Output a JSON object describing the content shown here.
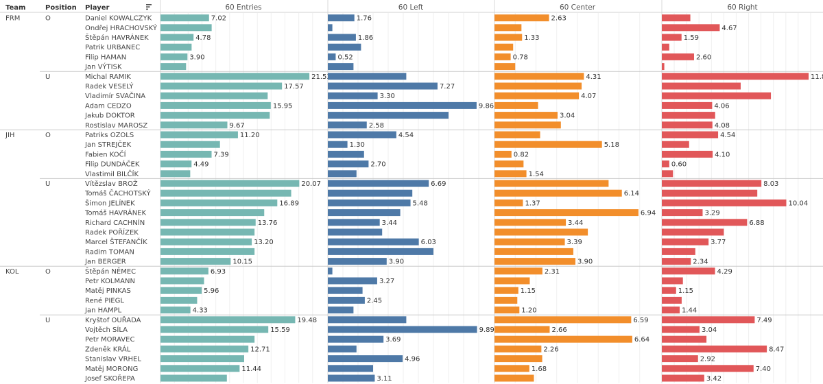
{
  "headers": {
    "team": "Team",
    "position": "Position",
    "player": "Player",
    "sort_icon": "sort-descending-icon"
  },
  "chart_data": {
    "type": "bar",
    "columns": [
      {
        "name": "60 Entries",
        "color": "#76B7B2"
      },
      {
        "name": "60 Left",
        "color": "#4E79A7"
      },
      {
        "name": "60 Center",
        "color": "#F28E2B"
      },
      {
        "name": "60 Right",
        "color": "#E15759"
      }
    ],
    "axis_ranges": [
      [
        0,
        24
      ],
      [
        0,
        11
      ],
      [
        0,
        8
      ],
      [
        0,
        13
      ]
    ],
    "gridlines": true,
    "rows": [
      {
        "team": "FRM",
        "position": "O",
        "player": "Daniel KOWALCZYK",
        "values": [
          7.02,
          1.76,
          2.63,
          2.3
        ],
        "labels": [
          "7.02",
          "1.76",
          "2.63",
          ""
        ]
      },
      {
        "team": "",
        "position": "",
        "player": "Ondřej HRACHOVSKÝ",
        "values": [
          7.4,
          0.3,
          1.3,
          4.67
        ],
        "labels": [
          "",
          "",
          "",
          "4.67"
        ]
      },
      {
        "team": "",
        "position": "",
        "player": "Štěpán HAVRÁNEK",
        "values": [
          4.78,
          1.86,
          1.33,
          1.59
        ],
        "labels": [
          "4.78",
          "1.86",
          "1.33",
          "1.59"
        ]
      },
      {
        "team": "",
        "position": "",
        "player": "Patrik URBANEC",
        "values": [
          4.5,
          2.2,
          0.9,
          0.6
        ],
        "labels": [
          "",
          "",
          "",
          ""
        ]
      },
      {
        "team": "",
        "position": "",
        "player": "Filip HAMAN",
        "values": [
          3.9,
          0.52,
          0.78,
          2.6
        ],
        "labels": [
          "3.90",
          "0.52",
          "0.78",
          "2.60"
        ]
      },
      {
        "team": "",
        "position": "",
        "player": "Jan VÝTISK",
        "values": [
          3.7,
          1.7,
          1.0,
          0.2
        ],
        "labels": [
          "",
          "",
          "",
          ""
        ]
      },
      {
        "team": "",
        "position": "U",
        "player": "Michal RAMIK",
        "values": [
          21.53,
          5.2,
          4.31,
          11.84
        ],
        "labels": [
          "21.53",
          "",
          "4.31",
          "11.84"
        ]
      },
      {
        "team": "",
        "position": "",
        "player": "Radek VESELÝ",
        "values": [
          17.57,
          7.27,
          4.2,
          6.36
        ],
        "labels": [
          "17.57",
          "7.27",
          "",
          ""
        ]
      },
      {
        "team": "",
        "position": "",
        "player": "Vladimír SVAČINA",
        "values": [
          15.5,
          3.3,
          4.07,
          8.8
        ],
        "labels": [
          "",
          "3.30",
          "4.07",
          ""
        ]
      },
      {
        "team": "",
        "position": "",
        "player": "Adam CEDZO",
        "values": [
          15.95,
          9.86,
          2.1,
          4.06
        ],
        "labels": [
          "15.95",
          "9.86",
          "",
          "4.06"
        ]
      },
      {
        "team": "",
        "position": "",
        "player": "Jakub DOKTOR",
        "values": [
          15.8,
          8.0,
          3.04,
          4.3
        ],
        "labels": [
          "",
          "",
          "3.04",
          ""
        ]
      },
      {
        "team": "",
        "position": "",
        "player": "Rostislav MAROSZ",
        "values": [
          9.67,
          2.58,
          3.2,
          4.08
        ],
        "labels": [
          "9.67",
          "2.58",
          "",
          "4.08"
        ]
      },
      {
        "team": "JIH",
        "position": "O",
        "player": "Patriks OZOLS",
        "values": [
          11.2,
          4.54,
          2.2,
          4.54
        ],
        "labels": [
          "11.20",
          "4.54",
          "",
          "4.54"
        ]
      },
      {
        "team": "",
        "position": "",
        "player": "Jan STREJČEK",
        "values": [
          8.6,
          1.3,
          5.18,
          2.2
        ],
        "labels": [
          "",
          "1.30",
          "5.18",
          ""
        ]
      },
      {
        "team": "",
        "position": "",
        "player": "Fabien KOČÍ",
        "values": [
          7.39,
          2.4,
          0.82,
          4.1
        ],
        "labels": [
          "7.39",
          "",
          "0.82",
          "4.10"
        ]
      },
      {
        "team": "",
        "position": "",
        "player": "Filip DUNDÁČEK",
        "values": [
          4.49,
          2.7,
          1.4,
          0.6
        ],
        "labels": [
          "4.49",
          "2.70",
          "",
          "0.60"
        ]
      },
      {
        "team": "",
        "position": "",
        "player": "Vlastimil BILČÍK",
        "values": [
          4.3,
          1.9,
          1.54,
          0.9
        ],
        "labels": [
          "",
          "",
          "1.54",
          ""
        ]
      },
      {
        "team": "",
        "position": "U",
        "player": "Vítězslav BROŽ",
        "values": [
          20.07,
          6.69,
          5.5,
          8.03
        ],
        "labels": [
          "20.07",
          "6.69",
          "",
          "8.03"
        ]
      },
      {
        "team": "",
        "position": "",
        "player": "Tomáš ČACHOTSKÝ",
        "values": [
          18.9,
          5.6,
          6.14,
          7.7
        ],
        "labels": [
          "",
          "",
          "6.14",
          ""
        ]
      },
      {
        "team": "",
        "position": "",
        "player": "Šimon JELÍNEK",
        "values": [
          16.89,
          5.48,
          1.37,
          10.04
        ],
        "labels": [
          "16.89",
          "5.48",
          "1.37",
          "10.04"
        ]
      },
      {
        "team": "",
        "position": "",
        "player": "Tomáš HAVRÁNEK",
        "values": [
          15.0,
          4.8,
          6.94,
          3.29
        ],
        "labels": [
          "",
          "",
          "6.94",
          "3.29"
        ]
      },
      {
        "team": "",
        "position": "",
        "player": "Richard CACHNÍN",
        "values": [
          13.76,
          3.44,
          3.44,
          6.88
        ],
        "labels": [
          "13.76",
          "3.44",
          "3.44",
          "6.88"
        ]
      },
      {
        "team": "",
        "position": "",
        "player": "Radek POŘÍZEK",
        "values": [
          13.6,
          3.6,
          4.5,
          5.0
        ],
        "labels": [
          "",
          "",
          "",
          ""
        ]
      },
      {
        "team": "",
        "position": "",
        "player": "Marcel ŠTEFANČÍK",
        "values": [
          13.2,
          6.03,
          3.39,
          3.77
        ],
        "labels": [
          "13.20",
          "6.03",
          "3.39",
          "3.77"
        ]
      },
      {
        "team": "",
        "position": "",
        "player": "Radim TOMAN",
        "values": [
          13.6,
          7.0,
          3.8,
          2.7
        ],
        "labels": [
          "",
          "",
          "",
          ""
        ]
      },
      {
        "team": "",
        "position": "",
        "player": "Jan BERGER",
        "values": [
          10.15,
          3.9,
          3.9,
          2.34
        ],
        "labels": [
          "10.15",
          "3.90",
          "3.90",
          "2.34"
        ]
      },
      {
        "team": "KOL",
        "position": "O",
        "player": "Štěpán NĚMEC",
        "values": [
          6.93,
          0.3,
          2.31,
          4.29
        ],
        "labels": [
          "6.93",
          "",
          "2.31",
          "4.29"
        ]
      },
      {
        "team": "",
        "position": "",
        "player": "Petr KOLMANN",
        "values": [
          6.3,
          3.27,
          1.7,
          1.7
        ],
        "labels": [
          "",
          "3.27",
          "",
          ""
        ]
      },
      {
        "team": "",
        "position": "",
        "player": "Matěj PINKAS",
        "values": [
          5.96,
          2.3,
          1.15,
          1.15
        ],
        "labels": [
          "5.96",
          "",
          "1.15",
          "1.15"
        ]
      },
      {
        "team": "",
        "position": "",
        "player": "René PIEGL",
        "values": [
          5.3,
          2.45,
          1.1,
          1.6
        ],
        "labels": [
          "",
          "2.45",
          "",
          ""
        ]
      },
      {
        "team": "",
        "position": "",
        "player": "Jan HAMPL",
        "values": [
          4.33,
          1.7,
          1.2,
          1.44
        ],
        "labels": [
          "4.33",
          "",
          "1.20",
          "1.44"
        ]
      },
      {
        "team": "",
        "position": "U",
        "player": "Kryštof OUŘADA",
        "values": [
          19.48,
          5.2,
          6.59,
          7.49
        ],
        "labels": [
          "19.48",
          "",
          "6.59",
          "7.49"
        ]
      },
      {
        "team": "",
        "position": "",
        "player": "Vojtěch SÍLA",
        "values": [
          15.59,
          9.89,
          2.66,
          3.04
        ],
        "labels": [
          "15.59",
          "9.89",
          "2.66",
          "3.04"
        ]
      },
      {
        "team": "",
        "position": "",
        "player": "Petr MORAVEC",
        "values": [
          13.6,
          3.69,
          6.64,
          3.6
        ],
        "labels": [
          "",
          "3.69",
          "6.64",
          ""
        ]
      },
      {
        "team": "",
        "position": "",
        "player": "Zdeněk KRÁL",
        "values": [
          12.71,
          1.9,
          2.26,
          8.47
        ],
        "labels": [
          "12.71",
          "",
          "2.26",
          "8.47"
        ]
      },
      {
        "team": "",
        "position": "",
        "player": "Stanislav VRHEL",
        "values": [
          12.1,
          4.96,
          2.3,
          2.92
        ],
        "labels": [
          "",
          "4.96",
          "",
          "2.92"
        ]
      },
      {
        "team": "",
        "position": "",
        "player": "Matěj MORONG",
        "values": [
          11.44,
          3.0,
          1.68,
          7.4
        ],
        "labels": [
          "11.44",
          "",
          "1.68",
          "7.40"
        ]
      },
      {
        "team": "",
        "position": "",
        "player": "Josef SKOŘEPA",
        "values": [
          9.6,
          3.11,
          1.9,
          3.42
        ],
        "labels": [
          "",
          "3.11",
          "",
          "3.42"
        ]
      }
    ]
  }
}
